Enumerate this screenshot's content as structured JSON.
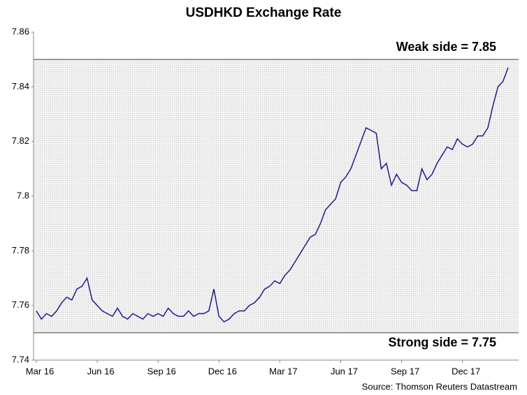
{
  "chart_data": {
    "type": "line",
    "title": "USDHKD Exchange Rate",
    "source": "Source: Thomson Reuters Datastream",
    "categories": [
      "Mar 16",
      null,
      null,
      null,
      null,
      null,
      null,
      null,
      null,
      null,
      null,
      null,
      "Jun 16",
      null,
      null,
      null,
      null,
      null,
      null,
      null,
      null,
      null,
      null,
      null,
      "Sep 16",
      null,
      null,
      null,
      null,
      null,
      null,
      null,
      null,
      null,
      null,
      null,
      "Dec 16",
      null,
      null,
      null,
      null,
      null,
      null,
      null,
      null,
      null,
      null,
      null,
      "Mar 17",
      null,
      null,
      null,
      null,
      null,
      null,
      null,
      null,
      null,
      null,
      null,
      "Jun 17",
      null,
      null,
      null,
      null,
      null,
      null,
      null,
      null,
      null,
      null,
      null,
      "Sep 17",
      null,
      null,
      null,
      null,
      null,
      null,
      null,
      null,
      null,
      null,
      null,
      "Dec 17",
      null,
      null,
      null,
      null,
      null,
      null,
      null,
      null,
      null
    ],
    "series": [
      {
        "name": "USDHKD",
        "color": "#1c1c8a",
        "values": [
          7.758,
          7.755,
          7.757,
          7.756,
          7.758,
          7.761,
          7.763,
          7.762,
          7.766,
          7.767,
          7.77,
          7.762,
          7.76,
          7.758,
          7.757,
          7.756,
          7.759,
          7.756,
          7.755,
          7.757,
          7.756,
          7.755,
          7.757,
          7.756,
          7.757,
          7.756,
          7.759,
          7.757,
          7.756,
          7.756,
          7.758,
          7.756,
          7.757,
          7.757,
          7.758,
          7.766,
          7.756,
          7.754,
          7.755,
          7.757,
          7.758,
          7.758,
          7.76,
          7.761,
          7.763,
          7.766,
          7.767,
          7.769,
          7.768,
          7.771,
          7.773,
          7.776,
          7.779,
          7.782,
          7.785,
          7.786,
          7.79,
          7.795,
          7.797,
          7.799,
          7.805,
          7.807,
          7.81,
          7.815,
          7.82,
          7.825,
          7.824,
          7.823,
          7.81,
          7.812,
          7.804,
          7.808,
          7.805,
          7.804,
          7.802,
          7.802,
          7.81,
          7.806,
          7.808,
          7.812,
          7.815,
          7.818,
          7.817,
          7.821,
          7.819,
          7.818,
          7.819,
          7.822,
          7.822,
          7.825,
          7.833,
          7.84,
          7.842,
          7.847
        ]
      }
    ],
    "ylim": [
      7.74,
      7.86
    ],
    "yticks": [
      7.74,
      7.76,
      7.78,
      7.8,
      7.82,
      7.84,
      7.86
    ],
    "reference_lines": [
      {
        "value": 7.85,
        "label": "Weak side = 7.85"
      },
      {
        "value": 7.75,
        "label": "Strong side = 7.75"
      }
    ]
  }
}
